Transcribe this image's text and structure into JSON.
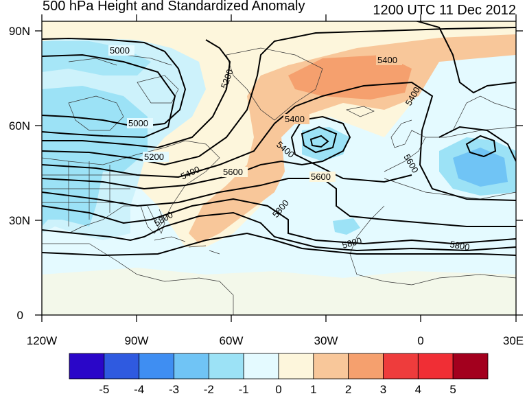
{
  "title": "500 hPa Height and Standardized Anomaly",
  "timestamp": "1200 UTC 11 Dec 2012",
  "x_ticks": [
    "120W",
    "90W",
    "60W",
    "30W",
    "0",
    "30E"
  ],
  "y_ticks": [
    "90N",
    "60N",
    "30N",
    "0"
  ],
  "contour_labels": [
    "5000",
    "5000",
    "5200",
    "5200",
    "5400",
    "5400",
    "5400",
    "5400",
    "5400",
    "5600",
    "5600",
    "5600",
    "5800",
    "5800",
    "5800",
    "5800",
    "5800",
    "5600"
  ],
  "colorbar": {
    "labels": [
      "-5",
      "-4",
      "-3",
      "-2",
      "-1",
      "0",
      "1",
      "2",
      "3",
      "4",
      "5"
    ],
    "colors": [
      "#2a06c8",
      "#2f5ae0",
      "#3f8ef2",
      "#70c4f5",
      "#9ce2f6",
      "#e4faff",
      "#fdf6dc",
      "#f8c79a",
      "#f5a06e",
      "#ee3c3c",
      "#f02e35",
      "#a3001e"
    ]
  },
  "chart_data": {
    "type": "map",
    "field": "500 hPa geopotential height (contours) and standardized anomaly (shading)",
    "x_range": [
      "120W",
      "30E"
    ],
    "y_range": [
      "0",
      "90N"
    ],
    "contour_levels": [
      5000,
      5200,
      5400,
      5600,
      5800
    ],
    "anomaly_range": [
      -5,
      5
    ]
  }
}
